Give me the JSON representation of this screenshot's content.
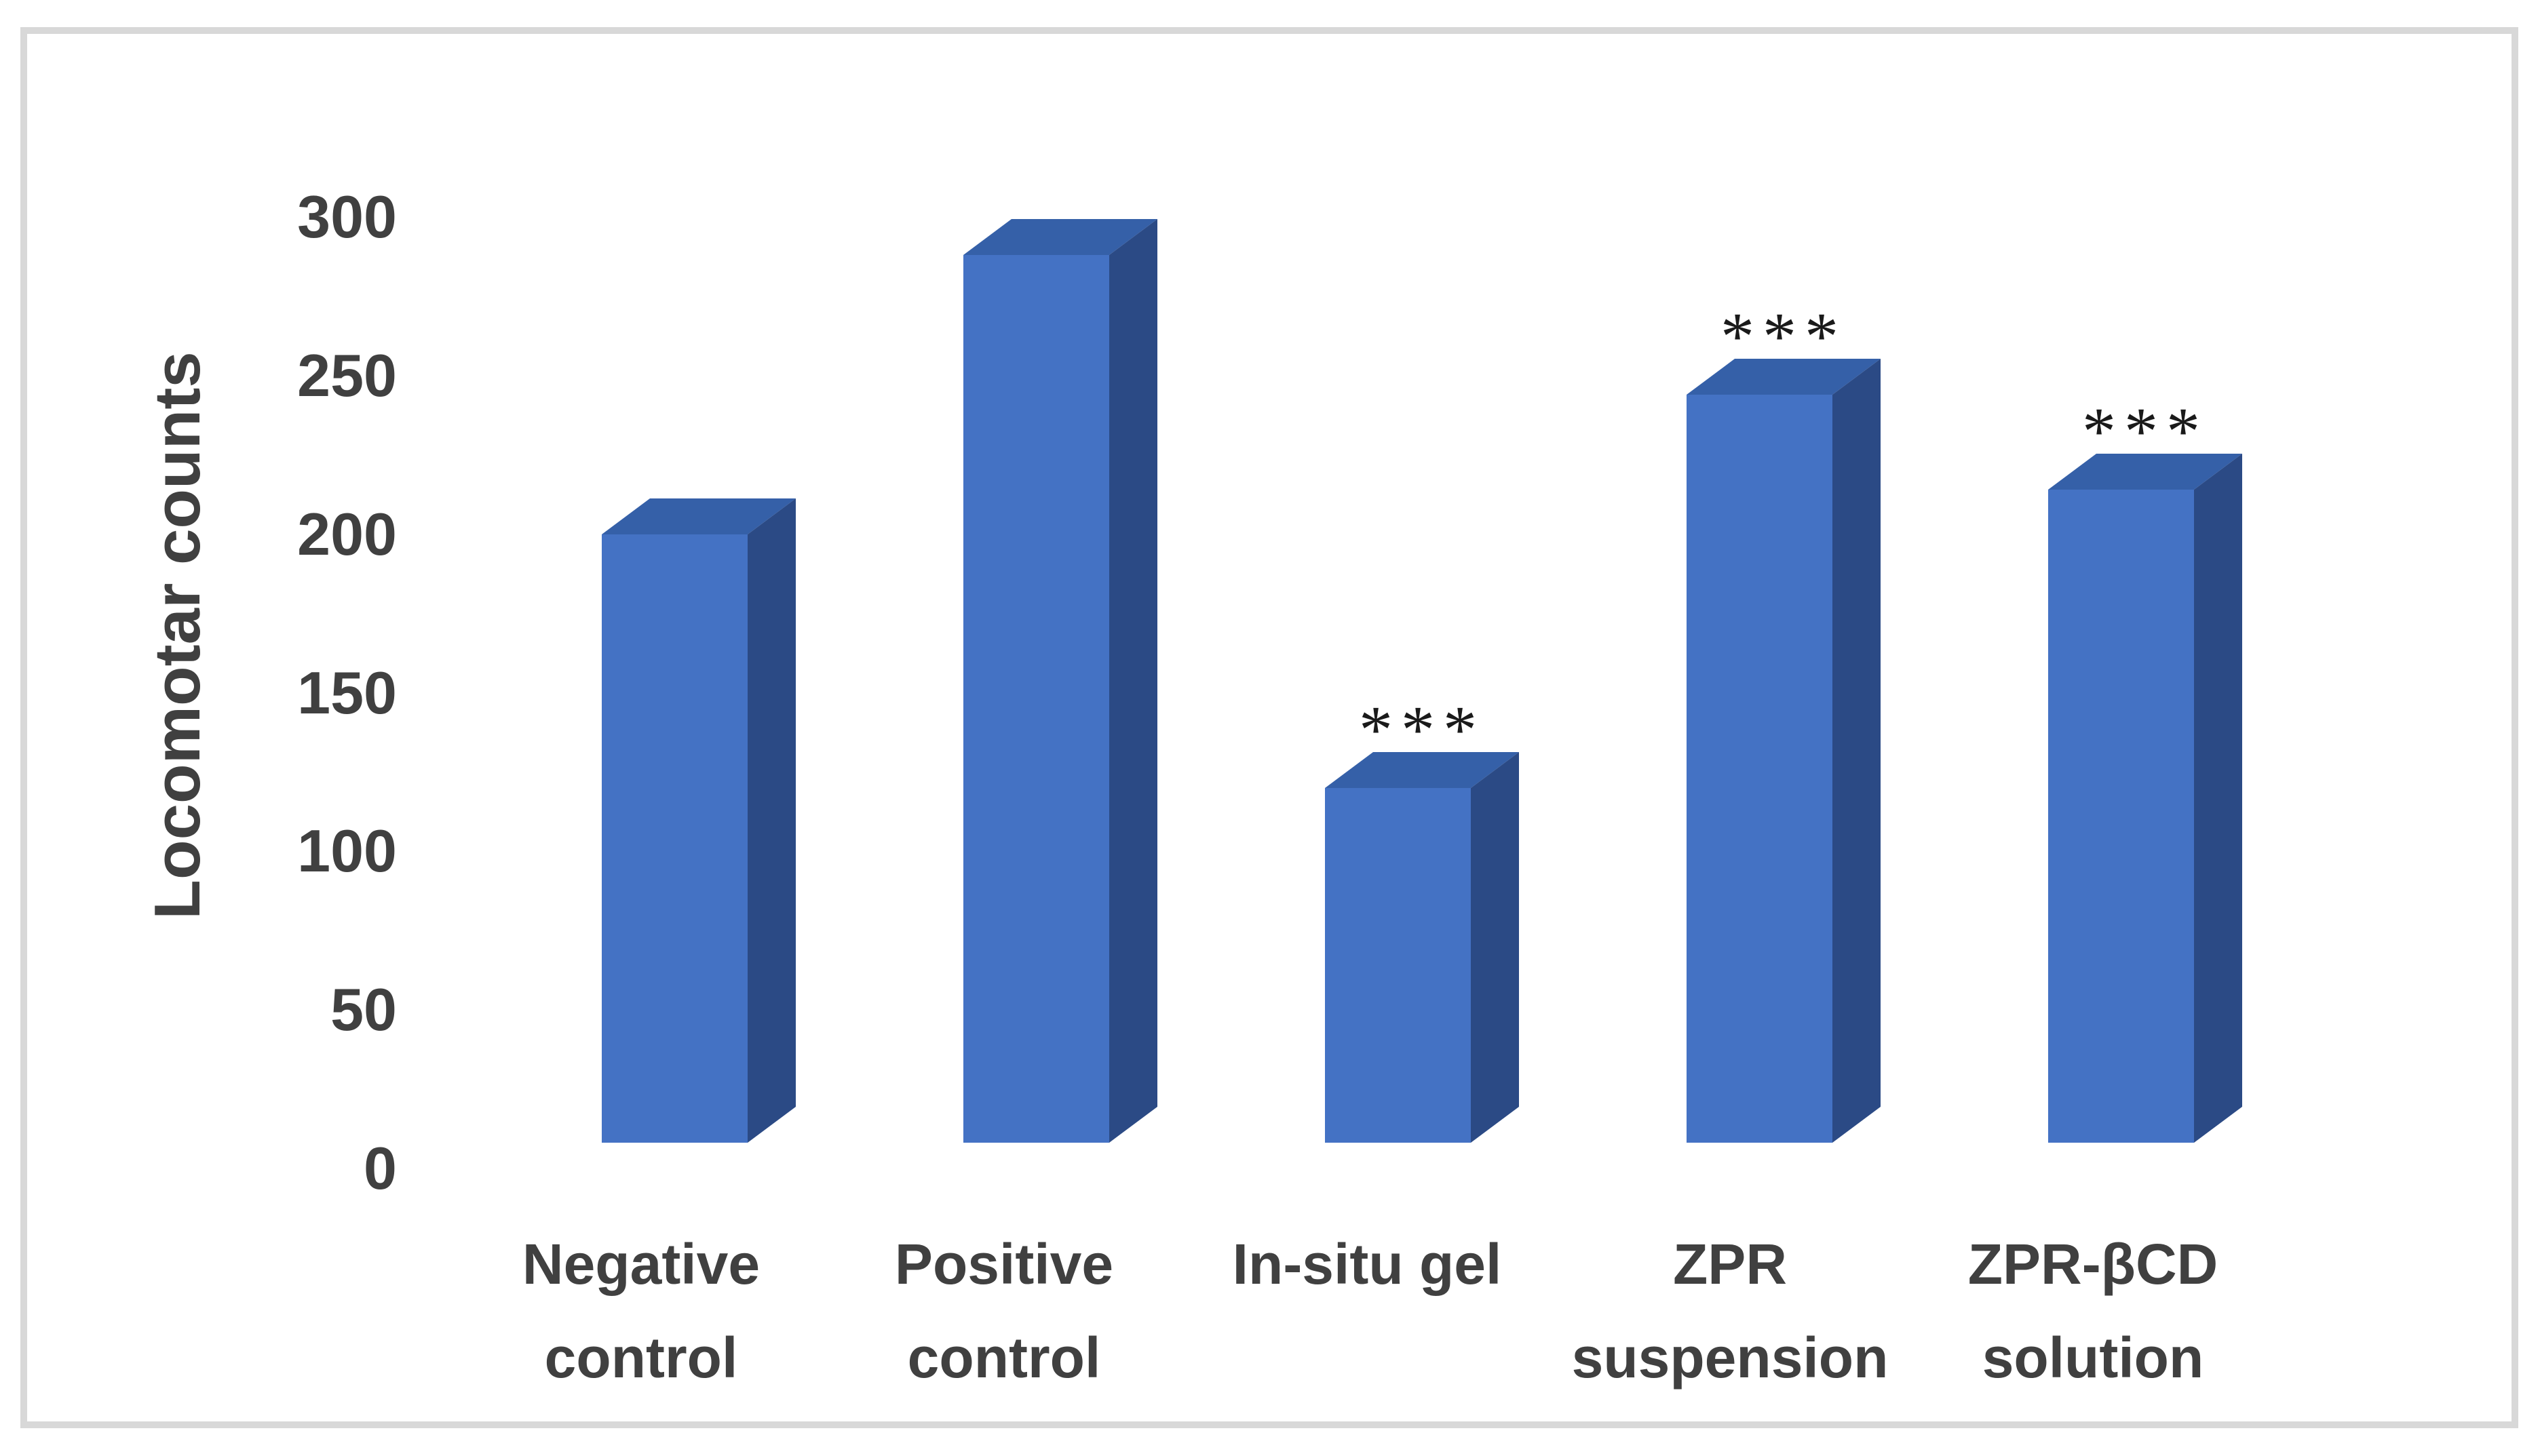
{
  "figure": {
    "background": "#ffffff",
    "border_color": "#d8d8d8",
    "text_color": "#404040"
  },
  "chart_data": {
    "type": "bar",
    "style": "3d-column",
    "title": "",
    "xlabel": "",
    "ylabel": "Locomotar counts",
    "categories": [
      "Negative control",
      "Positive control",
      "In-situ gel",
      "ZPR suspension",
      "ZPR-βCD solution"
    ],
    "category_label_lines": [
      [
        "Negative",
        "control"
      ],
      [
        "Positive",
        "control"
      ],
      [
        "In-situ gel"
      ],
      [
        "ZPR",
        "suspension"
      ],
      [
        "ZPR-βCD",
        "solution"
      ]
    ],
    "values": [
      200,
      288,
      120,
      244,
      214
    ],
    "annotations": [
      "",
      "",
      "***",
      "***",
      "***"
    ],
    "y_ticks": [
      0,
      50,
      100,
      150,
      200,
      250,
      300
    ],
    "ylim": [
      0,
      300
    ],
    "grid": false,
    "legend": null,
    "bar_colors": {
      "front": "#4472c4",
      "side": "#2b4a85",
      "top": "#3560a8"
    },
    "annotation_color": "#1a1a1a"
  }
}
